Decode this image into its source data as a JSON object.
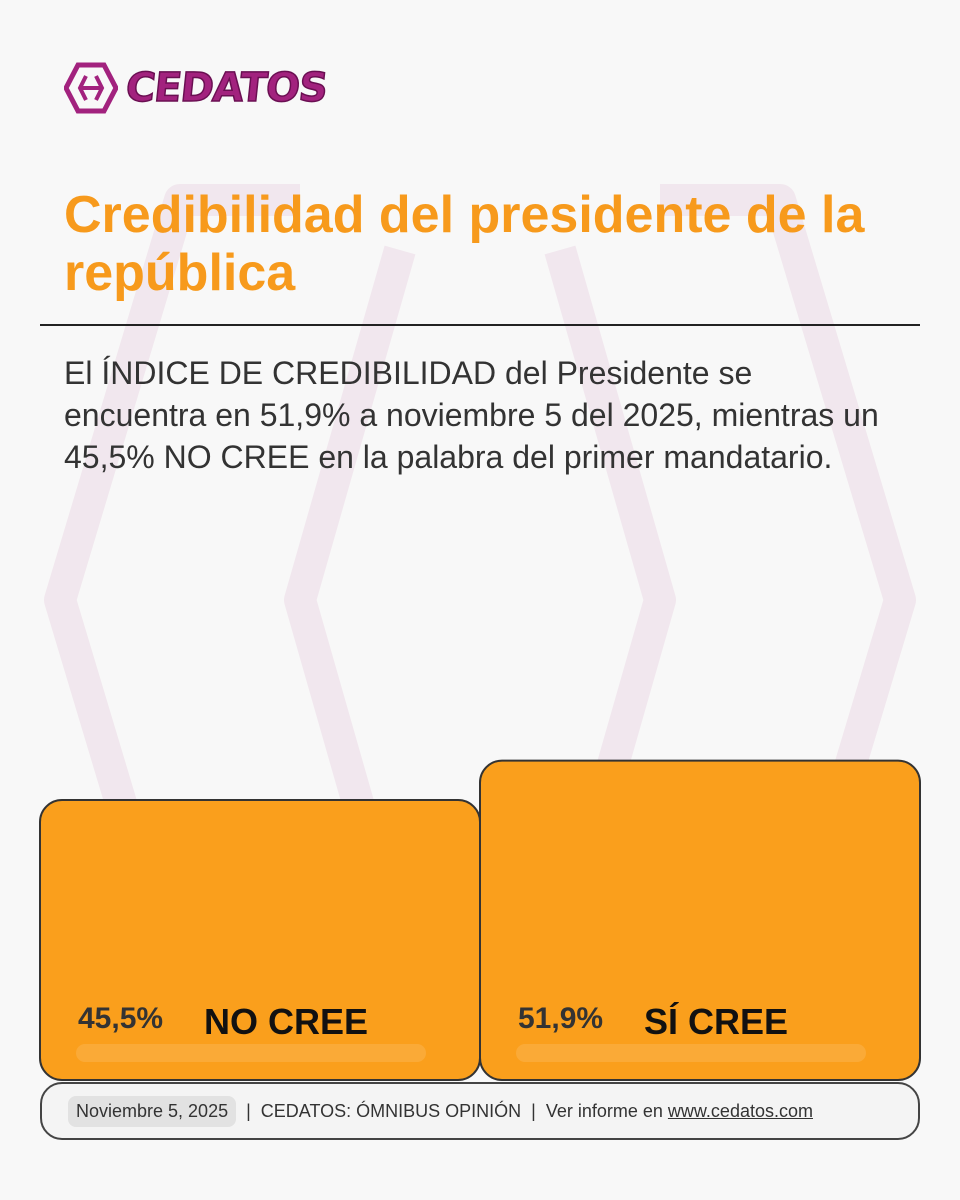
{
  "brand": {
    "name": "CEDATOS"
  },
  "header": {
    "title": "Credibilidad del presidente de la república"
  },
  "summary": "El ÍNDICE DE CREDIBILIDAD del Presidente se encuentra en 51,9% a noviembre 5 del 2025, mientras un 45,5% NO CREE en la palabra del primer mandatario.",
  "colors": {
    "accent": "#f79a1c",
    "bar": "#fa9f1c",
    "brand": "#a2227e"
  },
  "chart_data": {
    "type": "bar",
    "title": "Credibilidad del presidente de la república",
    "categories": [
      "NO CREE",
      "SÍ CREE"
    ],
    "values": [
      45.5,
      51.9
    ],
    "value_labels": [
      "45,5%",
      "51,9%"
    ],
    "ylim": [
      0,
      60
    ],
    "xlabel": "",
    "ylabel": "",
    "unit": "%"
  },
  "footer": {
    "date": "Noviembre 5, 2025",
    "source": "CEDATOS: ÓMNIBUS OPINIÓN",
    "report_prefix": "Ver informe en",
    "report_link": "www.cedatos.com"
  }
}
